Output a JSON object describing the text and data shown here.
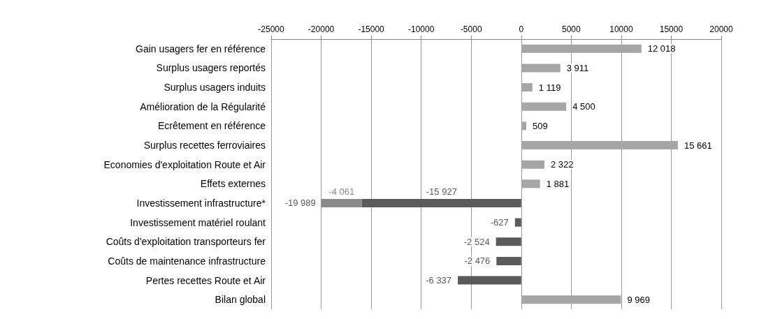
{
  "chart_data": {
    "type": "bar",
    "orientation": "horizontal",
    "stacked": true,
    "categories": [
      "Gain usagers fer en référence",
      "Surplus usagers reportés",
      "Surplus usagers induits",
      "Amélioration de la Régularité",
      "Ecrêtement en référence",
      "Surplus recettes ferroviaires",
      "Economies d'exploitation Route et Air",
      "Effets externes",
      "Investissement infrastructure*",
      "Investissement matériel roulant",
      "Coûts d'exploitation transporteurs fer",
      "Coûts de maintenance infrastructure",
      "Pertes recettes Route et Air",
      "Bilan global"
    ],
    "series": [
      {
        "color": "#5a5a5a",
        "values": [
          null,
          null,
          null,
          null,
          null,
          null,
          null,
          null,
          -15927,
          -627,
          -2524,
          -2476,
          -6337,
          null
        ],
        "value_labels": [
          null,
          null,
          null,
          null,
          null,
          null,
          null,
          null,
          "-15 927",
          "-627",
          "-2 524",
          "-2 476",
          "-6 337",
          null
        ]
      },
      {
        "color": "#8a8a8a",
        "values": [
          null,
          null,
          null,
          null,
          null,
          null,
          null,
          null,
          -4061,
          null,
          null,
          null,
          null,
          null
        ],
        "value_labels": [
          null,
          null,
          null,
          null,
          null,
          null,
          null,
          null,
          "-4 061",
          null,
          null,
          null,
          null,
          null
        ]
      },
      {
        "color": "#a6a6a6",
        "values": [
          12018,
          3911,
          1119,
          4500,
          509,
          15661,
          2322,
          1881,
          null,
          null,
          null,
          null,
          null,
          9969
        ],
        "value_labels": [
          "12 018",
          "3 911",
          "1 119",
          "4 500",
          "509",
          "15 661",
          "2 322",
          "1 881",
          null,
          null,
          null,
          null,
          null,
          "9 969"
        ]
      }
    ],
    "totals": [
      null,
      null,
      null,
      null,
      null,
      null,
      null,
      null,
      "-19 989",
      null,
      null,
      null,
      null,
      null
    ],
    "xlim": [
      -25000,
      20000
    ],
    "xticks": [
      -25000,
      -20000,
      -15000,
      -10000,
      -5000,
      0,
      5000,
      10000,
      15000,
      20000
    ],
    "grid": "x"
  }
}
